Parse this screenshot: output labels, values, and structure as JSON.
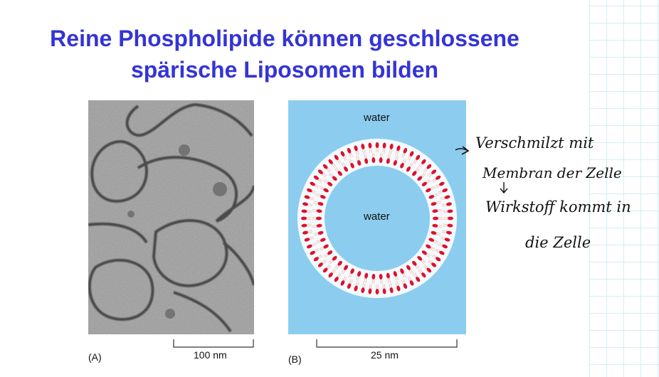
{
  "slide": {
    "title_line1": "Reine Phospholipide können geschlossene",
    "title_line2": "spärische Liposomen bilden"
  },
  "panel_a": {
    "label": "(A)",
    "scale_label": "100 nm"
  },
  "panel_b": {
    "label": "(B)",
    "water_outside": "water",
    "water_inside": "water",
    "scale_label": "25 nm",
    "colors": {
      "water": "#8ccdef",
      "head": "#e0102c",
      "tail": "#f6b7a8"
    }
  },
  "handwriting": {
    "line1": "Verschmilzt mit",
    "line2": "Membran der Zelle",
    "line3": "Wirkstoff kommt in",
    "line4": "die Zelle"
  }
}
